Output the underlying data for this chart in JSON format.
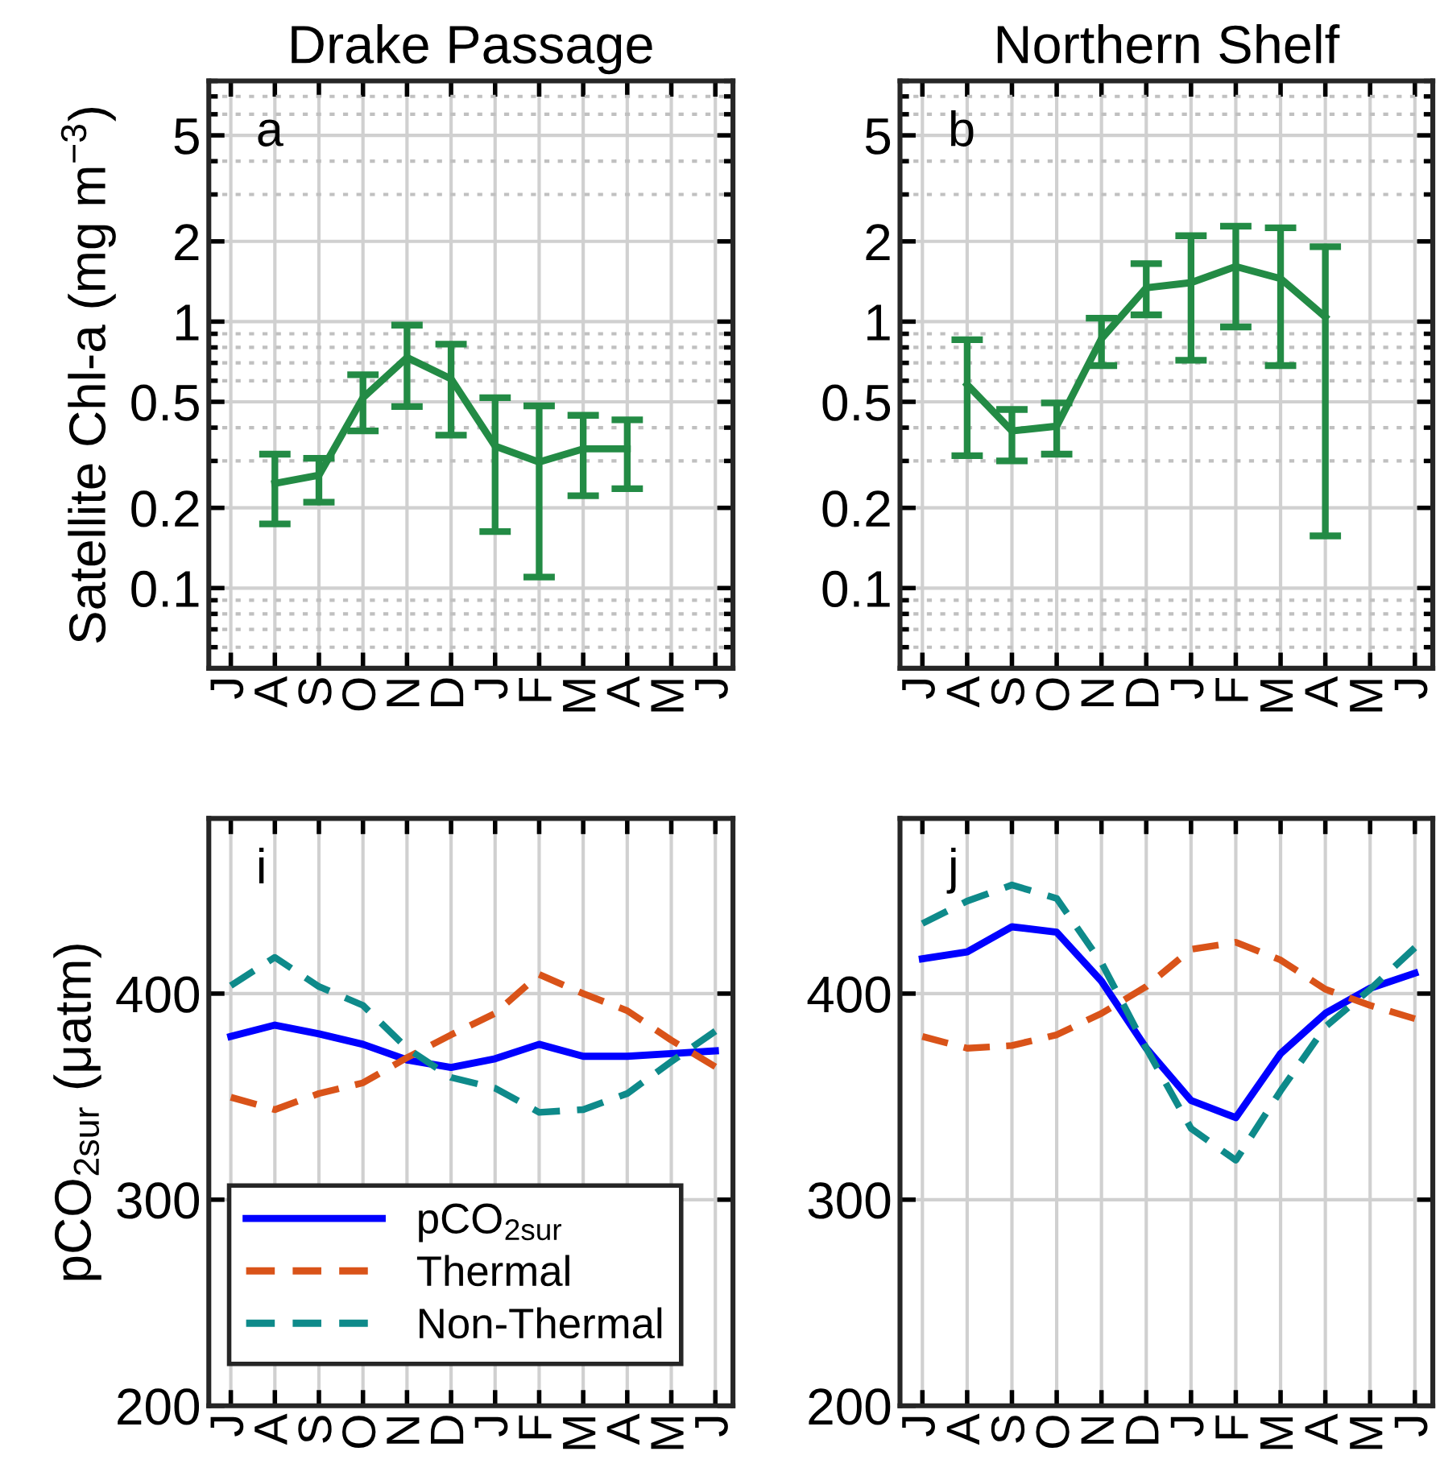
{
  "chart_data": [
    {
      "type": "line",
      "title": "Drake Passage",
      "ylabel": "Satellite Chl-a (mg m$^{−3}$)",
      "annotations": [
        "a"
      ],
      "categories": [
        "J",
        "A",
        "S",
        "O",
        "N",
        "D",
        "J",
        "F",
        "M",
        "A",
        "M",
        "J"
      ],
      "log": true,
      "ylim": [
        0.05,
        8
      ],
      "yticks": [
        0.1,
        0.2,
        0.5,
        1,
        2,
        5
      ],
      "grid": true,
      "legend": false,
      "series": [
        {
          "color": "#238b45",
          "line_style": "solid",
          "values": [
            null,
            0.247,
            0.265,
            0.518,
            0.733,
            0.61,
            0.341,
            0.297,
            0.333,
            0.333,
            null,
            null
          ],
          "errors": [
            null,
            [
              0.174,
              0.318
            ],
            [
              0.21,
              0.307
            ],
            [
              0.389,
              0.632
            ],
            [
              0.48,
              0.97
            ],
            [
              0.375,
              0.823
            ],
            [
              0.163,
              0.518
            ],
            [
              0.11,
              0.483
            ],
            [
              0.222,
              0.445
            ],
            [
              0.236,
              0.428
            ],
            null,
            null
          ]
        }
      ]
    },
    {
      "type": "line",
      "title": "Northern Shelf",
      "annotations": [
        "b"
      ],
      "categories": [
        "J",
        "A",
        "S",
        "O",
        "N",
        "D",
        "J",
        "F",
        "M",
        "A",
        "M",
        "J"
      ],
      "log": true,
      "ylim": [
        0.05,
        8
      ],
      "yticks": [
        0.1,
        0.2,
        0.5,
        1,
        2,
        5
      ],
      "grid": true,
      "legend": false,
      "series": [
        {
          "color": "#238b45",
          "line_style": "solid",
          "values": [
            null,
            0.58,
            0.389,
            0.405,
            0.863,
            1.34,
            1.4,
            1.61,
            1.45,
            1.04,
            null,
            null
          ],
          "errors": [
            null,
            [
              0.314,
              0.855
            ],
            [
              0.3,
              0.468
            ],
            [
              0.318,
              0.495
            ],
            [
              0.684,
              1.03
            ],
            [
              1.06,
              1.65
            ],
            [
              0.716,
              2.1
            ],
            [
              0.955,
              2.28
            ],
            [
              0.684,
              2.25
            ],
            [
              0.157,
              1.91
            ],
            null,
            null
          ]
        }
      ]
    },
    {
      "type": "line",
      "ylabel": "pCO$_{2sur}$ (μatm)",
      "annotations": [
        "i"
      ],
      "categories": [
        "J",
        "A",
        "S",
        "O",
        "N",
        "D",
        "J",
        "F",
        "M",
        "A",
        "M",
        "J"
      ],
      "ylim": [
        200,
        485
      ],
      "yticks": [
        200,
        300,
        400
      ],
      "grid": true,
      "legend": "bottom",
      "series": [
        {
          "name": "pCO$_{2sur}$",
          "color": "#0000ff",
          "line_style": "solid",
          "values": [
            379.2,
            384.7,
            380.5,
            375.4,
            367.8,
            364.2,
            368.4,
            375.4,
            369.6,
            369.6,
            370.9,
            372.2
          ]
        },
        {
          "name": "Thermal",
          "color": "#d95319",
          "line_style": "dashed",
          "values": [
            349.7,
            343.7,
            351.5,
            356.7,
            368.9,
            380,
            390.4,
            409.3,
            400,
            391.7,
            377.4,
            364.5
          ]
        },
        {
          "name": "Non-Thermal",
          "color": "#0e8a8a",
          "line_style": "dashed",
          "values": [
            403.9,
            417.6,
            403.4,
            394.3,
            373.5,
            359.3,
            354.1,
            342.4,
            343.7,
            351.5,
            367,
            381.8
          ]
        }
      ]
    },
    {
      "type": "line",
      "annotations": [
        "j"
      ],
      "categories": [
        "J",
        "A",
        "S",
        "O",
        "N",
        "D",
        "J",
        "F",
        "M",
        "A",
        "M",
        "J"
      ],
      "ylim": [
        200,
        485
      ],
      "yticks": [
        200,
        300,
        400
      ],
      "grid": true,
      "legend": false,
      "series": [
        {
          "color": "#0000ff",
          "line_style": "solid",
          "values": [
            416.9,
            420.2,
            432.4,
            429.8,
            406,
            373.5,
            348.1,
            339.8,
            370.9,
            390.4,
            402.6,
            409.9
          ]
        },
        {
          "color": "#d95319",
          "line_style": "dashed",
          "values": [
            379.2,
            373.5,
            374.8,
            380,
            390.4,
            403.4,
            421.5,
            424.9,
            416.3,
            402.1,
            394.3,
            387.8
          ]
        },
        {
          "color": "#0e8a8a",
          "line_style": "dashed",
          "values": [
            434,
            444.9,
            452.7,
            446.2,
            415,
            373.5,
            334.6,
            319.1,
            352.8,
            383.9,
            402.1,
            422.3
          ]
        }
      ]
    }
  ]
}
